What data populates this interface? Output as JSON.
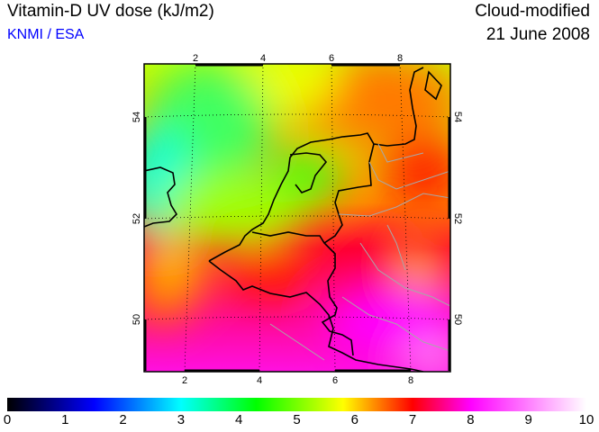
{
  "header": {
    "title": "Vitamin-D UV dose (kJ/m2)",
    "organization": "KNMI / ESA",
    "mode": "Cloud-modified",
    "date": "21 June 2008"
  },
  "map": {
    "lon_ticks_top": [
      "2",
      "4",
      "6",
      "8"
    ],
    "lon_ticks_bottom": [
      "2",
      "4",
      "6",
      "8"
    ],
    "lat_ticks_left": [
      "54",
      "52",
      "50"
    ],
    "lat_ticks_right": [
      "54",
      "52",
      "50"
    ]
  },
  "colorbar": {
    "min": 0,
    "max": 10,
    "labels": [
      "0",
      "1",
      "2",
      "3",
      "4",
      "5",
      "6",
      "7",
      "8",
      "9",
      "10"
    ],
    "colors": [
      "#000000",
      "#0000ff",
      "#00ffff",
      "#00ff00",
      "#ffff00",
      "#ff0000",
      "#ff00ff",
      "#ffffff"
    ]
  }
}
